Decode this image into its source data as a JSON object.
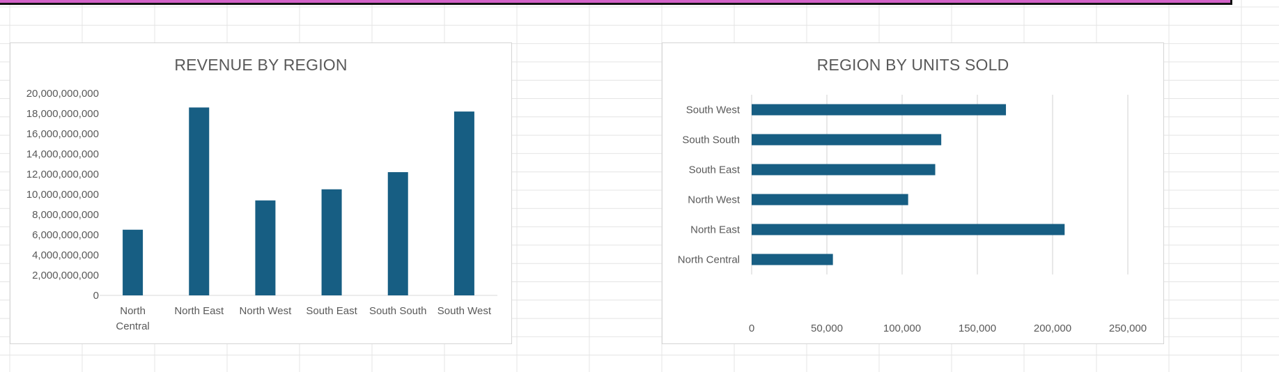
{
  "colors": {
    "bar": "#175e83",
    "grid": "#d9d9d9",
    "text": "#595959",
    "banner": "#d262c8",
    "sheet_grid": "#e4e4e4"
  },
  "chart_data": [
    {
      "type": "bar",
      "title": "REVENUE BY REGION",
      "categories": [
        "North Central",
        "North East",
        "North West",
        "South East",
        "South South",
        "South West"
      ],
      "category_labels": [
        [
          "North",
          "Central"
        ],
        [
          "North East"
        ],
        [
          "North West"
        ],
        [
          "South East"
        ],
        [
          "South South"
        ],
        [
          "South West"
        ]
      ],
      "values": [
        6500000000,
        18600000000,
        9400000000,
        10500000000,
        12200000000,
        18200000000
      ],
      "ylim": [
        0,
        20000000000
      ],
      "yticks": [
        0,
        2000000000,
        4000000000,
        6000000000,
        8000000000,
        10000000000,
        12000000000,
        14000000000,
        16000000000,
        18000000000,
        20000000000
      ],
      "ytick_labels": [
        "0",
        "2,000,000,000",
        "4,000,000,000",
        "6,000,000,000",
        "8,000,000,000",
        "10,000,000,000",
        "12,000,000,000",
        "14,000,000,000",
        "16,000,000,000",
        "18,000,000,000",
        "20,000,000,000"
      ],
      "xlabel": "",
      "ylabel": "",
      "grid": false,
      "legend": "none"
    },
    {
      "type": "bar",
      "orientation": "horizontal",
      "title": "REGION BY UNITS SOLD",
      "categories": [
        "North Central",
        "North East",
        "North West",
        "South East",
        "South South",
        "South West"
      ],
      "values": [
        54000,
        208000,
        104000,
        122000,
        126000,
        169000
      ],
      "xlim": [
        0,
        250000
      ],
      "xticks": [
        0,
        50000,
        100000,
        150000,
        200000,
        250000
      ],
      "xtick_labels": [
        "0",
        "50,000",
        "100,000",
        "150,000",
        "200,000",
        "250,000"
      ],
      "xlabel": "",
      "ylabel": "",
      "grid": true,
      "legend": "none"
    }
  ]
}
